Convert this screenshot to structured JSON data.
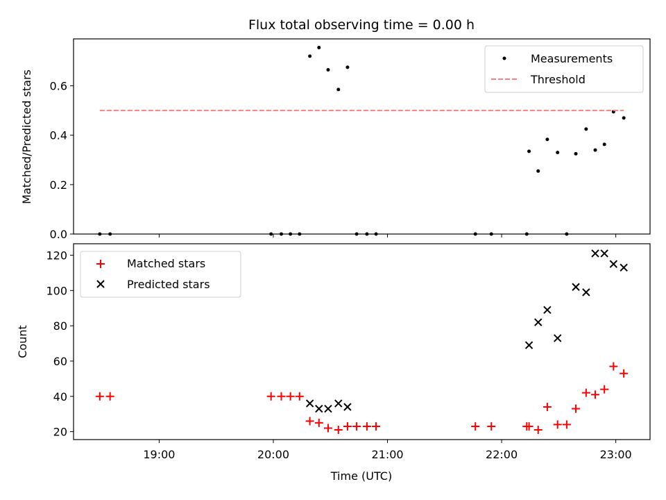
{
  "chart_data": {
    "type": "scatter",
    "title": "Flux total observing time = 0.00 h",
    "xlabel": "Time (UTC)",
    "x_ticks": [
      "19:00",
      "20:00",
      "21:00",
      "22:00",
      "23:00"
    ],
    "x_tick_values": [
      19.0,
      20.0,
      21.0,
      22.0,
      23.0
    ],
    "xlim": [
      18.25,
      23.3
    ],
    "panels": [
      {
        "ylabel": "Matched/Predicted stars",
        "ylim": [
          0,
          0.79
        ],
        "yticks": [
          0.0,
          0.2,
          0.4,
          0.6
        ],
        "ytick_labels": [
          "0.0",
          "0.2",
          "0.4",
          "0.6"
        ],
        "legend_position": "top-right",
        "series": [
          {
            "name": "Measurements",
            "marker": "dot",
            "color": "#000000",
            "x": [
              18.48,
              18.57,
              19.98,
              20.07,
              20.15,
              20.23,
              20.32,
              20.4,
              20.48,
              20.57,
              20.65,
              20.73,
              20.82,
              20.9,
              21.77,
              21.91,
              22.22,
              22.24,
              22.32,
              22.4,
              22.49,
              22.57,
              22.65,
              22.74,
              22.82,
              22.9,
              22.98,
              23.07
            ],
            "y": [
              0.0,
              0.0,
              0.0,
              0.0,
              0.0,
              0.0,
              0.72,
              0.755,
              0.665,
              0.585,
              0.675,
              0.0,
              0.0,
              0.0,
              0.0,
              0.0,
              0.0,
              0.335,
              0.255,
              0.383,
              0.33,
              0.0,
              0.325,
              0.425,
              0.34,
              0.363,
              0.495,
              0.47
            ]
          },
          {
            "name": "Threshold",
            "line": "dashed",
            "color": "#ff7f7f",
            "x": [
              18.48,
              23.07
            ],
            "y": [
              0.5,
              0.5
            ]
          }
        ]
      },
      {
        "ylabel": "Count",
        "ylim": [
          15.5,
          126.5
        ],
        "yticks": [
          20,
          40,
          60,
          80,
          100,
          120
        ],
        "ytick_labels": [
          "20",
          "40",
          "60",
          "80",
          "100",
          "120"
        ],
        "legend_position": "top-left",
        "series": [
          {
            "name": "Matched stars",
            "marker": "plus",
            "color": "#ff0000",
            "x": [
              18.48,
              18.57,
              19.98,
              20.07,
              20.15,
              20.23,
              20.32,
              20.4,
              20.48,
              20.57,
              20.65,
              20.73,
              20.82,
              20.9,
              21.77,
              21.91,
              22.22,
              22.24,
              22.32,
              22.4,
              22.49,
              22.57,
              22.65,
              22.74,
              22.82,
              22.9,
              22.98,
              23.07
            ],
            "y": [
              40,
              40,
              40,
              40,
              40,
              40,
              26,
              25,
              22,
              21,
              23,
              23,
              23,
              23,
              23,
              23,
              23,
              23,
              21,
              34,
              24,
              24,
              33,
              42,
              41,
              44,
              57,
              53
            ]
          },
          {
            "name": "Predicted stars",
            "marker": "x",
            "color": "#000000",
            "x": [
              20.32,
              20.4,
              20.48,
              20.57,
              20.65,
              22.24,
              22.32,
              22.4,
              22.49,
              22.65,
              22.74,
              22.82,
              22.9,
              22.98,
              23.07
            ],
            "y": [
              36,
              33,
              33,
              36,
              34,
              69,
              82,
              89,
              73,
              102,
              99,
              121,
              121,
              115,
              113
            ]
          }
        ]
      }
    ]
  }
}
